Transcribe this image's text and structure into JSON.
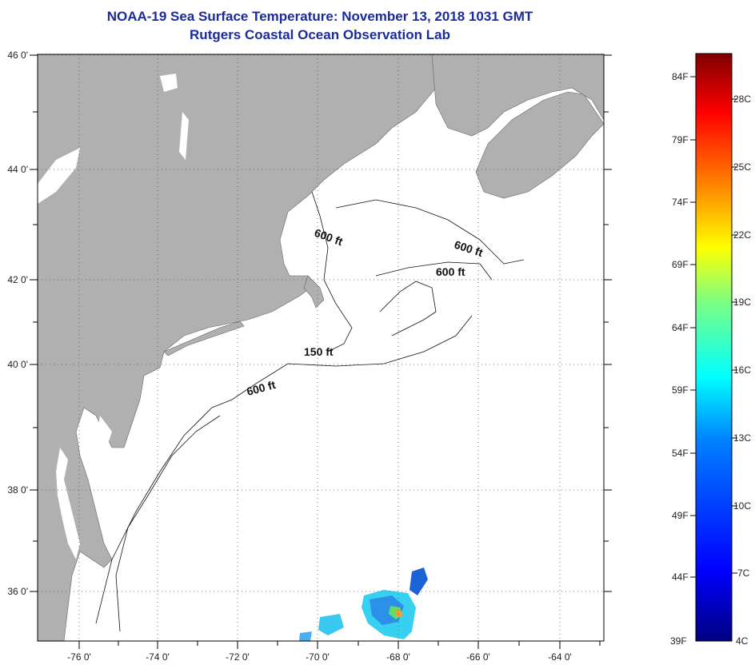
{
  "title": "NOAA-19 Sea Surface Temperature:  November 13, 2018 1031 GMT",
  "subtitle": "Rutgers Coastal Ocean Observation Lab",
  "map": {
    "land_color": "#b0b0b0",
    "water_color": "#ffffff",
    "lon_ticks": [
      "-76 0'",
      "-74 0'",
      "-72 0'",
      "-70 0'",
      "-68 0'",
      "-66 0'",
      "-64 0'"
    ],
    "lat_ticks": [
      "46 0'",
      "44 0'",
      "42 0'",
      "40 0'",
      "38 0'",
      "36 0'"
    ],
    "contour_labels": [
      "600 ft",
      "600 ft",
      "600 ft",
      "150 ft",
      "600 ft"
    ]
  },
  "colorbar": {
    "f_labels": [
      "84F",
      "79F",
      "74F",
      "69F",
      "64F",
      "59F",
      "54F",
      "49F",
      "44F",
      "39F"
    ],
    "c_labels": [
      "28C",
      "25C",
      "22C",
      "19C",
      "16C",
      "13C",
      "10C",
      "7C",
      "4C"
    ],
    "colors": [
      "#00007f",
      "#0000ff",
      "#007fff",
      "#00ffff",
      "#7fff7f",
      "#ffff00",
      "#ff7f00",
      "#ff0000",
      "#7f0000"
    ]
  }
}
